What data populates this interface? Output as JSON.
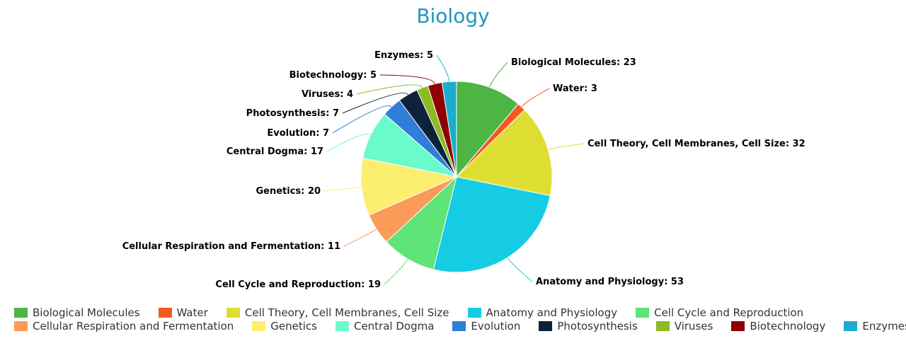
{
  "chart_data": {
    "type": "pie",
    "title": "Biology",
    "title_color": "#1f96c0",
    "categories": [
      "Biological Molecules",
      "Water",
      "Cell Theory, Cell Membranes, Cell Size",
      "Anatomy and Physiology",
      "Cell Cycle and Reproduction",
      "Cellular Respiration and Fermentation",
      "Genetics",
      "Central Dogma",
      "Evolution",
      "Photosynthesis",
      "Viruses",
      "Biotechnology",
      "Enzymes"
    ],
    "values": [
      23,
      3,
      32,
      53,
      19,
      11,
      20,
      17,
      7,
      7,
      4,
      5,
      5
    ],
    "colors": [
      "#4cb543",
      "#f15a22",
      "#dede32",
      "#16cce5",
      "#5fe477",
      "#fa9b58",
      "#fcee6e",
      "#69fbcb",
      "#2f7ed8",
      "#0d233a",
      "#8bbc21",
      "#910000",
      "#1aadce"
    ],
    "legend_position": "bottom"
  }
}
